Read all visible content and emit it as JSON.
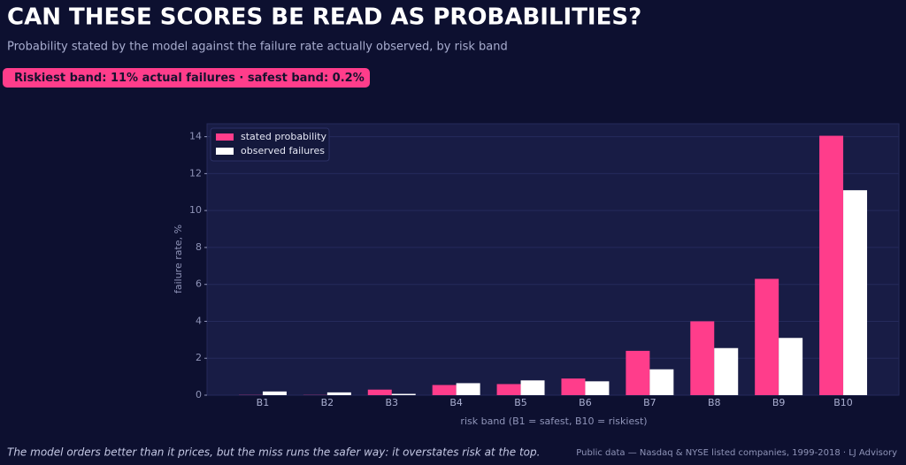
{
  "chart_data": {
    "type": "bar",
    "title": "CAN THESE SCORES BE READ AS PROBABILITIES?",
    "subtitle": "Probability stated by the model against the failure rate actually observed, by risk band",
    "annotation": "Riskiest band: 11% actual failures  ·  safest band: 0.2%",
    "x_label": "risk band  (B1 = safest, B10 = riskiest)",
    "y_label": "failure rate, %",
    "categories": [
      "B1",
      "B2",
      "B3",
      "B4",
      "B5",
      "B6",
      "B7",
      "B8",
      "B9",
      "B10"
    ],
    "series": [
      {
        "name": "stated probability",
        "color": "#ff3d8b",
        "values": [
          0.01,
          0.01,
          0.3,
          0.55,
          0.6,
          0.9,
          2.4,
          4.0,
          6.3,
          14.05
        ]
      },
      {
        "name": "observed failures",
        "color": "#ffffff",
        "values": [
          0.2,
          0.15,
          0.07,
          0.65,
          0.8,
          0.75,
          1.4,
          2.55,
          3.1,
          11.1
        ]
      }
    ],
    "ylim": [
      0,
      14.7
    ],
    "yticks": [
      0,
      2,
      4,
      6,
      8,
      10,
      12,
      14
    ],
    "grid": true,
    "legend": "upper left",
    "note": "The model orders better than it prices, but the miss runs the safer way: it overstates risk at the top.",
    "source": "Public data — Nasdaq & NYSE listed companies, 1999-2018  ·  LJ Advisory"
  }
}
